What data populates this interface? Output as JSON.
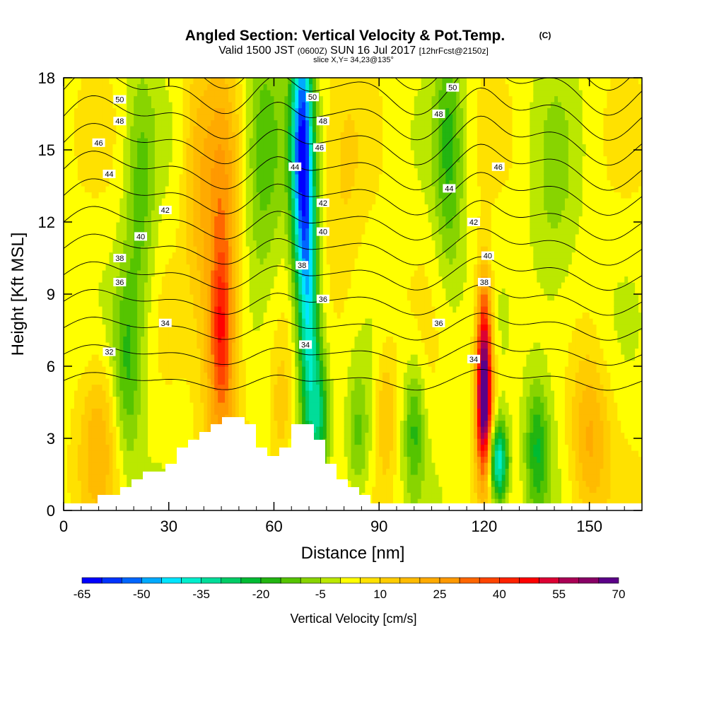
{
  "chart_data": {
    "type": "heatmap",
    "title": "Angled Section: Vertical Velocity & Pot.Temp.",
    "title_mark": "(C)",
    "subtitle_parts": [
      "Valid 1500 JST",
      "(0600Z)",
      "SUN 16 Jul 2017",
      "[12hrFcst@2150z]"
    ],
    "slice": "slice X,Y= 34,23@135°",
    "xlabel": "Distance [nm]",
    "ylabel": "Height [Kft MSL]",
    "xlim": [
      0,
      165
    ],
    "ylim": [
      0,
      18
    ],
    "xticks": [
      "0",
      "30",
      "60",
      "90",
      "120",
      "150"
    ],
    "yticks": [
      "0",
      "3",
      "6",
      "9",
      "12",
      "15",
      "18"
    ],
    "colorbar": {
      "label": "Vertical Velocity [cm/s]",
      "min": -65,
      "max": 70,
      "step": 5,
      "tick_labels": [
        "-65",
        "-50",
        "-35",
        "-20",
        "-5",
        "10",
        "25",
        "40",
        "55",
        "70"
      ],
      "colors": [
        "#0000ff",
        "#0033ff",
        "#0066ff",
        "#00aaff",
        "#00e5ff",
        "#00eecc",
        "#00dd99",
        "#00cc66",
        "#00bb33",
        "#22b511",
        "#55c400",
        "#88d400",
        "#bbe800",
        "#ffff00",
        "#ffe100",
        "#ffcc00",
        "#ffbb00",
        "#ffaa00",
        "#ff9900",
        "#ff6600",
        "#ff4400",
        "#ff2200",
        "#ff0000",
        "#dd0033",
        "#aa0055",
        "#880066",
        "#5c0088"
      ]
    },
    "velocity_features": [
      {
        "x": 45,
        "y": 9,
        "sx": 3.5,
        "sy": 6,
        "v": 30
      },
      {
        "x": 45,
        "y": 7.5,
        "sx": 2,
        "sy": 2,
        "v": 18
      },
      {
        "x": 38,
        "y": 14,
        "sx": 3,
        "sy": 4,
        "v": 12
      },
      {
        "x": 68,
        "y": 15,
        "sx": 2.2,
        "sy": 4,
        "v": -60
      },
      {
        "x": 70,
        "y": 8,
        "sx": 2,
        "sy": 4,
        "v": -38
      },
      {
        "x": 73,
        "y": 4,
        "sx": 2,
        "sy": 2,
        "v": -25
      },
      {
        "x": 120,
        "y": 4.5,
        "sx": 1.6,
        "sy": 2.2,
        "v": 70
      },
      {
        "x": 120,
        "y": 8,
        "sx": 1.5,
        "sy": 2,
        "v": 25
      },
      {
        "x": 124,
        "y": 2,
        "sx": 2,
        "sy": 1.2,
        "v": -45
      },
      {
        "x": 18,
        "y": 6,
        "sx": 3,
        "sy": 3,
        "v": -18
      },
      {
        "x": 22,
        "y": 13,
        "sx": 3,
        "sy": 4,
        "v": -14
      },
      {
        "x": 57,
        "y": 15,
        "sx": 4,
        "sy": 4,
        "v": -16
      },
      {
        "x": 110,
        "y": 15,
        "sx": 3,
        "sy": 4,
        "v": -18
      },
      {
        "x": 100,
        "y": 3.5,
        "sx": 2,
        "sy": 2,
        "v": -18
      },
      {
        "x": 135,
        "y": 2.5,
        "sx": 2.5,
        "sy": 2,
        "v": -22
      },
      {
        "x": 84,
        "y": 3,
        "sx": 2.5,
        "sy": 2,
        "v": -16
      },
      {
        "x": 10,
        "y": 3,
        "sx": 4,
        "sy": 2.5,
        "v": 15
      },
      {
        "x": 150,
        "y": 3,
        "sx": 4,
        "sy": 2.5,
        "v": 18
      },
      {
        "x": 92,
        "y": 4,
        "sx": 2,
        "sy": 2,
        "v": 12
      },
      {
        "x": 62,
        "y": 4,
        "sx": 2,
        "sy": 2,
        "v": 10
      },
      {
        "x": 80,
        "y": 12,
        "sx": 4,
        "sy": 5,
        "v": 6
      },
      {
        "x": 140,
        "y": 12,
        "sx": 5,
        "sy": 5,
        "v": -8
      }
    ],
    "theta_levels": [
      31,
      32,
      33,
      34,
      35,
      36,
      37,
      38,
      39,
      40,
      41,
      42,
      43,
      44,
      45,
      46,
      47,
      48,
      49,
      50,
      51
    ],
    "theta_labels": [
      {
        "text": "50",
        "x": 16,
        "y": 17.1
      },
      {
        "text": "48",
        "x": 16,
        "y": 16.2
      },
      {
        "text": "46",
        "x": 10,
        "y": 15.3
      },
      {
        "text": "44",
        "x": 13,
        "y": 14
      },
      {
        "text": "42",
        "x": 29,
        "y": 12.5
      },
      {
        "text": "40",
        "x": 22,
        "y": 11.4
      },
      {
        "text": "38",
        "x": 16,
        "y": 10.5
      },
      {
        "text": "36",
        "x": 16,
        "y": 9.5
      },
      {
        "text": "34",
        "x": 29,
        "y": 7.8
      },
      {
        "text": "32",
        "x": 13,
        "y": 6.6
      },
      {
        "text": "50",
        "x": 71,
        "y": 17.2
      },
      {
        "text": "48",
        "x": 74,
        "y": 16.2
      },
      {
        "text": "46",
        "x": 73,
        "y": 15.1
      },
      {
        "text": "44",
        "x": 66,
        "y": 14.3
      },
      {
        "text": "42",
        "x": 74,
        "y": 12.8
      },
      {
        "text": "40",
        "x": 74,
        "y": 11.6
      },
      {
        "text": "38",
        "x": 68,
        "y": 10.2
      },
      {
        "text": "36",
        "x": 74,
        "y": 8.8
      },
      {
        "text": "34",
        "x": 69,
        "y": 6.9
      },
      {
        "text": "50",
        "x": 111,
        "y": 17.6
      },
      {
        "text": "48",
        "x": 107,
        "y": 16.5
      },
      {
        "text": "46",
        "x": 124,
        "y": 14.3
      },
      {
        "text": "44",
        "x": 110,
        "y": 13.4
      },
      {
        "text": "42",
        "x": 117,
        "y": 12
      },
      {
        "text": "40",
        "x": 121,
        "y": 10.6
      },
      {
        "text": "38",
        "x": 120,
        "y": 9.5
      },
      {
        "text": "36",
        "x": 107,
        "y": 7.8
      },
      {
        "text": "34",
        "x": 117,
        "y": 6.3
      }
    ]
  }
}
